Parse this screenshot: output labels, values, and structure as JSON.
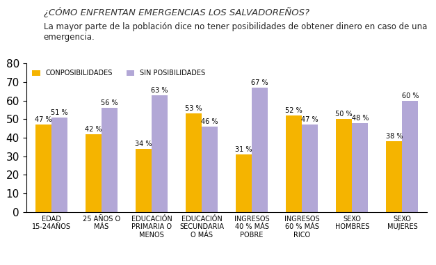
{
  "chart_data": {
    "type": "bar",
    "title": "¿CÓMO ENFRENTAN EMERGENCIAS LOS SALVADOREÑOS?",
    "subtitle": "La mayor parte de la población dice no tener posibilidades de obtener dinero en caso de una emergencia.",
    "categories": [
      "EDAD 15-24AÑOS",
      "25 AÑOS O MÁS",
      "EDUCACIÓN PRIMARIA O MENOS",
      "EDUCACIÓN SECUNDARIA O MÁS",
      "INGRESOS 40 % MÁS POBRE",
      "INGRESOS 60 % MÁS RICO",
      "SEXO HOMBRES",
      "SEXO MUJERES"
    ],
    "series": [
      {
        "name": "CONPOSIBILIDADES",
        "color": "#f5b400",
        "values": [
          47,
          42,
          34,
          53,
          31,
          52,
          50,
          38
        ],
        "value_labels": [
          "47 %",
          "42 %",
          "34 %",
          "53 %",
          "31 %",
          "52 %",
          "50 %",
          "38 %"
        ]
      },
      {
        "name": "SIN POSIBILIDADES",
        "color": "#b2a7d6",
        "values": [
          51,
          56,
          63,
          46,
          67,
          47,
          48,
          60
        ],
        "value_labels": [
          "51 %",
          "56 %",
          "63 %",
          "46 %",
          "67 %",
          "47 %",
          "48 %",
          "60 %"
        ]
      }
    ],
    "ylim": [
      0,
      80
    ],
    "yticks": [
      0,
      10,
      20,
      30,
      40,
      50,
      60,
      70,
      80
    ],
    "grid": false,
    "legend": "upper left",
    "data_labels": true
  }
}
